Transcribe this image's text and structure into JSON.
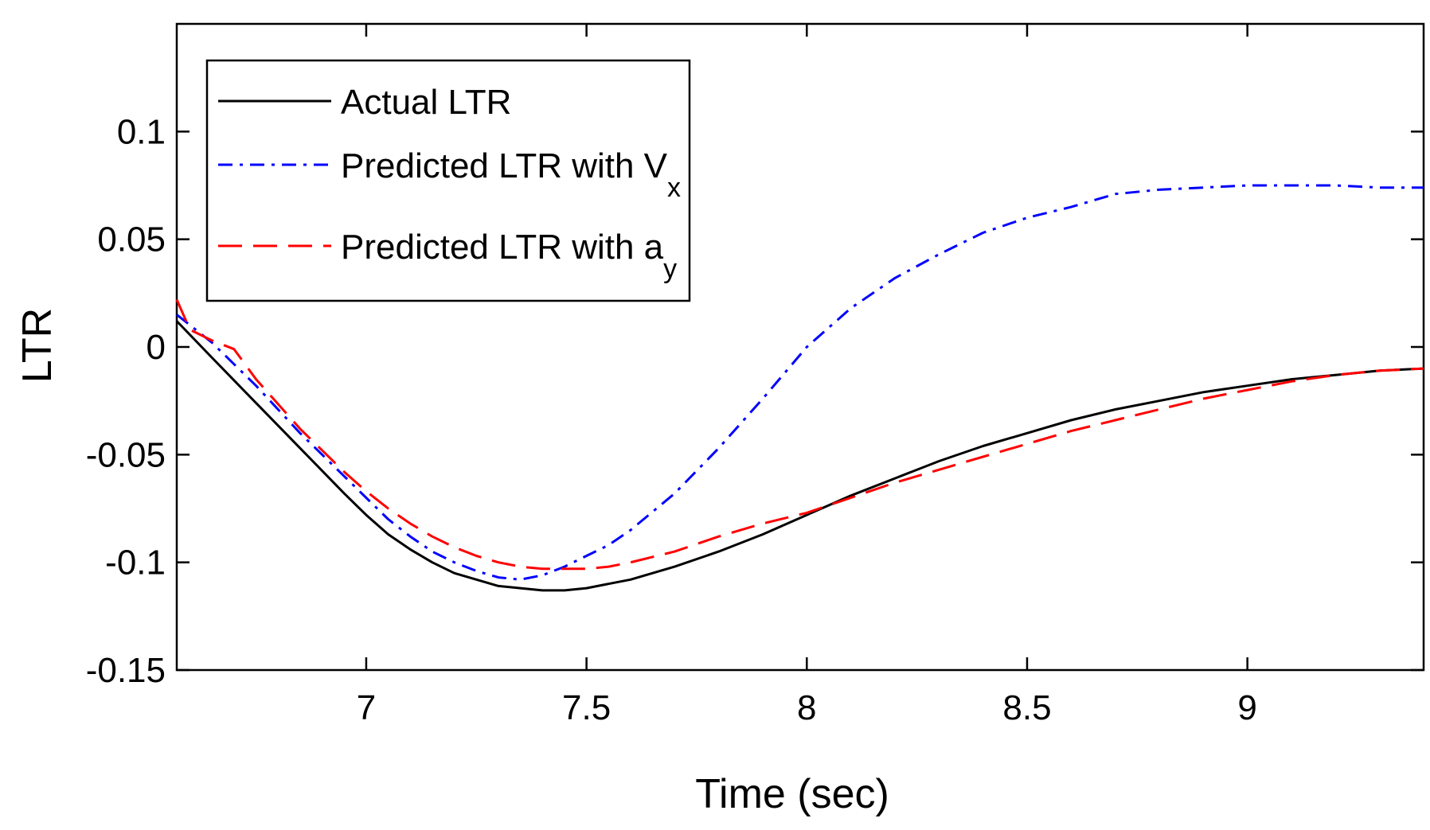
{
  "chart_data": {
    "type": "line",
    "xlabel": "Time (sec)",
    "ylabel": "LTR",
    "xlim": [
      6.57,
      9.4
    ],
    "ylim": [
      -0.15,
      0.15
    ],
    "xticks": [
      {
        "value": 7,
        "label": "7"
      },
      {
        "value": 7.5,
        "label": "7.5"
      },
      {
        "value": 8,
        "label": "8"
      },
      {
        "value": 8.5,
        "label": "8.5"
      },
      {
        "value": 9,
        "label": "9"
      }
    ],
    "yticks": [
      {
        "value": -0.15,
        "label": "-0.15"
      },
      {
        "value": -0.1,
        "label": "-0.1"
      },
      {
        "value": -0.05,
        "label": "-0.05"
      },
      {
        "value": 0,
        "label": "0"
      },
      {
        "value": 0.05,
        "label": "0.05"
      },
      {
        "value": 0.1,
        "label": "0.1"
      }
    ],
    "grid": false,
    "legend_position": "top-left",
    "series": [
      {
        "name": "Actual LTR",
        "color": "#000000",
        "dash": "solid",
        "x": [
          6.57,
          6.65,
          6.75,
          6.85,
          6.95,
          7.0,
          7.05,
          7.1,
          7.15,
          7.2,
          7.25,
          7.3,
          7.35,
          7.4,
          7.45,
          7.5,
          7.6,
          7.7,
          7.8,
          7.9,
          8.0,
          8.1,
          8.2,
          8.3,
          8.4,
          8.5,
          8.6,
          8.7,
          8.8,
          8.9,
          9.0,
          9.1,
          9.2,
          9.3,
          9.4
        ],
        "y": [
          0.012,
          -0.005,
          -0.026,
          -0.047,
          -0.068,
          -0.078,
          -0.087,
          -0.094,
          -0.1,
          -0.105,
          -0.108,
          -0.111,
          -0.112,
          -0.113,
          -0.113,
          -0.112,
          -0.108,
          -0.102,
          -0.095,
          -0.087,
          -0.078,
          -0.069,
          -0.061,
          -0.053,
          -0.046,
          -0.04,
          -0.034,
          -0.029,
          -0.025,
          -0.021,
          -0.018,
          -0.015,
          -0.013,
          -0.011,
          -0.01
        ]
      },
      {
        "name": "Predicted LTR with V",
        "name_sub": "x",
        "color": "#0000ff",
        "dash": "dashdot",
        "x": [
          6.57,
          6.65,
          6.75,
          6.85,
          6.95,
          7.0,
          7.05,
          7.1,
          7.15,
          7.2,
          7.25,
          7.3,
          7.35,
          7.4,
          7.45,
          7.5,
          7.55,
          7.6,
          7.7,
          7.8,
          7.9,
          8.0,
          8.1,
          8.2,
          8.3,
          8.4,
          8.5,
          8.6,
          8.7,
          8.8,
          8.9,
          9.0,
          9.1,
          9.2,
          9.3,
          9.4
        ],
        "y": [
          0.015,
          0.002,
          -0.018,
          -0.04,
          -0.06,
          -0.07,
          -0.08,
          -0.088,
          -0.095,
          -0.1,
          -0.104,
          -0.107,
          -0.108,
          -0.106,
          -0.102,
          -0.097,
          -0.092,
          -0.085,
          -0.068,
          -0.047,
          -0.024,
          0.0,
          0.018,
          0.032,
          0.043,
          0.053,
          0.06,
          0.065,
          0.071,
          0.073,
          0.074,
          0.075,
          0.075,
          0.075,
          0.074,
          0.074
        ]
      },
      {
        "name": "Predicted LTR with a",
        "name_sub": "y",
        "color": "#ff0000",
        "dash": "dashed",
        "x": [
          6.57,
          6.6,
          6.65,
          6.7,
          6.75,
          6.85,
          6.95,
          7.0,
          7.05,
          7.1,
          7.15,
          7.2,
          7.25,
          7.3,
          7.35,
          7.4,
          7.45,
          7.5,
          7.55,
          7.6,
          7.7,
          7.8,
          7.9,
          8.0,
          8.1,
          8.2,
          8.3,
          8.4,
          8.5,
          8.6,
          8.7,
          8.8,
          8.9,
          9.0,
          9.1,
          9.2,
          9.3,
          9.4
        ],
        "y": [
          0.022,
          0.008,
          0.003,
          -0.001,
          -0.015,
          -0.038,
          -0.058,
          -0.067,
          -0.075,
          -0.082,
          -0.088,
          -0.093,
          -0.097,
          -0.1,
          -0.102,
          -0.103,
          -0.103,
          -0.103,
          -0.102,
          -0.1,
          -0.095,
          -0.088,
          -0.082,
          -0.077,
          -0.07,
          -0.063,
          -0.057,
          -0.051,
          -0.045,
          -0.039,
          -0.034,
          -0.029,
          -0.024,
          -0.02,
          -0.016,
          -0.013,
          -0.011,
          -0.01
        ]
      }
    ]
  }
}
